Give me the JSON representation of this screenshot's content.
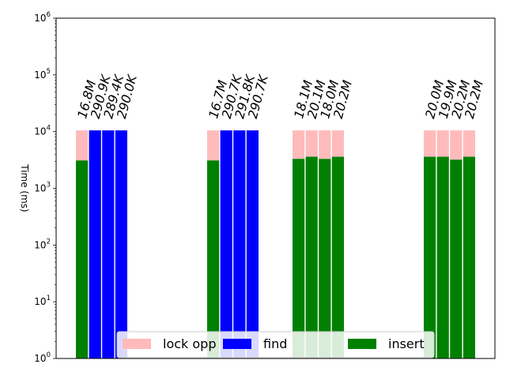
{
  "chart_data": {
    "type": "bar",
    "title": "",
    "xlabel": "",
    "ylabel": "Time (ms)",
    "yscale": "log",
    "ylim": [
      1,
      1000000
    ],
    "yticks": [
      {
        "value": 1,
        "base": "10",
        "exp": "0"
      },
      {
        "value": 10,
        "base": "10",
        "exp": "1"
      },
      {
        "value": 100,
        "base": "10",
        "exp": "2"
      },
      {
        "value": 1000,
        "base": "10",
        "exp": "3"
      },
      {
        "value": 10000,
        "base": "10",
        "exp": "4"
      },
      {
        "value": 100000,
        "base": "10",
        "exp": "5"
      },
      {
        "value": 1000000,
        "base": "10",
        "exp": "6"
      }
    ],
    "grid": false,
    "colors": {
      "lock opp": "#ffbbbb",
      "find": "#0000ff",
      "insert": "#008000"
    },
    "legend": {
      "placement": "lower-center",
      "entries": [
        "lock opp",
        "find",
        "insert"
      ]
    },
    "groups": [
      {
        "bars": [
          {
            "kind": "insert",
            "base": 3100,
            "total": 10500,
            "label": "16.8M"
          },
          {
            "kind": "find",
            "base": 10500,
            "total": 10500,
            "label": "290.9K"
          },
          {
            "kind": "find",
            "base": 10500,
            "total": 10500,
            "label": "289.4K"
          },
          {
            "kind": "find",
            "base": 10500,
            "total": 10500,
            "label": "290.0K"
          }
        ]
      },
      {
        "bars": [
          {
            "kind": "insert",
            "base": 3100,
            "total": 10500,
            "label": "16.7M"
          },
          {
            "kind": "find",
            "base": 10500,
            "total": 10500,
            "label": "290.7K"
          },
          {
            "kind": "find",
            "base": 10500,
            "total": 10500,
            "label": "291.8K"
          },
          {
            "kind": "find",
            "base": 10500,
            "total": 10500,
            "label": "290.7K"
          }
        ]
      },
      {
        "bars": [
          {
            "kind": "insert",
            "base": 3300,
            "total": 10500,
            "label": "18.1M"
          },
          {
            "kind": "insert",
            "base": 3600,
            "total": 10500,
            "label": "20.1M"
          },
          {
            "kind": "insert",
            "base": 3300,
            "total": 10500,
            "label": "18.0M"
          },
          {
            "kind": "insert",
            "base": 3600,
            "total": 10500,
            "label": "20.2M"
          }
        ]
      },
      {
        "bars": [
          {
            "kind": "insert",
            "base": 3600,
            "total": 10500,
            "label": "20.0M"
          },
          {
            "kind": "insert",
            "base": 3600,
            "total": 10500,
            "label": "19.9M"
          },
          {
            "kind": "insert",
            "base": 3200,
            "total": 10500,
            "label": "20.2M"
          },
          {
            "kind": "insert",
            "base": 3600,
            "total": 10500,
            "label": "20.2M"
          }
        ]
      }
    ]
  }
}
